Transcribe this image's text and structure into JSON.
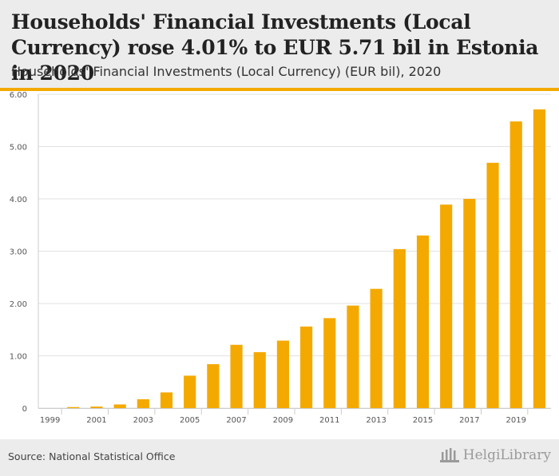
{
  "header": {
    "title": "Households' Financial Investments (Local Currency) rose 4.01% to EUR 5.71 bil in Estonia in 2020",
    "subtitle": "Households' Financial Investments (Local Currency) (EUR bil), 2020"
  },
  "footer": {
    "source": "Source: National Statistical Office",
    "logo_text": "HelgiLibrary"
  },
  "colors": {
    "bar": "#f4a900",
    "accent": "#f4a900",
    "header_bg": "#ececec"
  },
  "chart_data": {
    "type": "bar",
    "title": "Households' Financial Investments (Local Currency) (EUR bil), 2020",
    "xlabel": "",
    "ylabel": "EUR bil",
    "ylim": [
      0,
      6
    ],
    "yticks": [
      "0",
      "1.00",
      "2.00",
      "3.00",
      "4.00",
      "5.00",
      "6.00"
    ],
    "categories": [
      "1999",
      "2000",
      "2001",
      "2002",
      "2003",
      "2004",
      "2005",
      "2006",
      "2007",
      "2008",
      "2009",
      "2010",
      "2011",
      "2012",
      "2013",
      "2014",
      "2015",
      "2016",
      "2017",
      "2018",
      "2019",
      "2020"
    ],
    "xtick_labels": [
      "1999",
      "2001",
      "2003",
      "2005",
      "2007",
      "2009",
      "2011",
      "2013",
      "2015",
      "2017",
      "2019"
    ],
    "values": [
      0.0,
      0.02,
      0.03,
      0.07,
      0.17,
      0.3,
      0.62,
      0.84,
      1.21,
      1.07,
      1.29,
      1.56,
      1.72,
      1.96,
      2.28,
      3.04,
      3.3,
      3.89,
      4.0,
      4.69,
      5.48,
      5.71
    ],
    "grid": true,
    "legend": "none"
  }
}
